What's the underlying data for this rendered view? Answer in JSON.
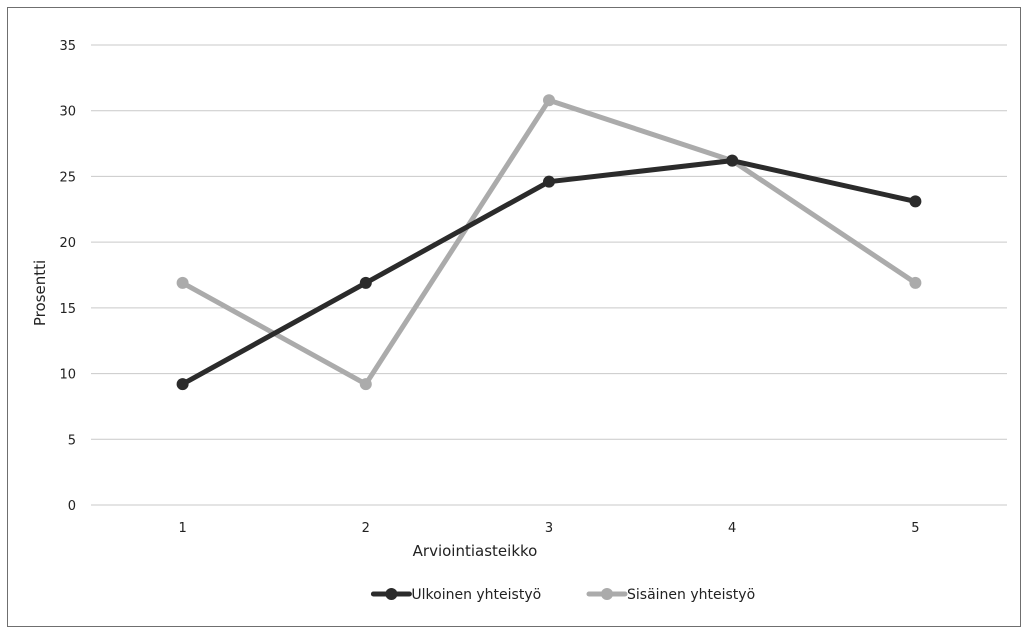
{
  "chart_data": {
    "type": "line",
    "xlabel": "Arviointiasteikko",
    "ylabel": "Prosentti",
    "categories": [
      "1",
      "2",
      "3",
      "4",
      "5"
    ],
    "yticks": [
      "0",
      "5",
      "10",
      "15",
      "20",
      "25",
      "30",
      "35"
    ],
    "ylim": [
      0,
      35
    ],
    "grid": true,
    "legend_position": "bottom",
    "series": [
      {
        "name": "Ulkoinen yhteistyö",
        "color": "#2b2b2b",
        "values": [
          9.2,
          16.9,
          24.6,
          26.2,
          23.1
        ]
      },
      {
        "name": "Sisäinen yhteistyö",
        "color": "#ababab",
        "values": [
          16.9,
          9.2,
          30.8,
          26.2,
          16.9
        ]
      }
    ]
  }
}
